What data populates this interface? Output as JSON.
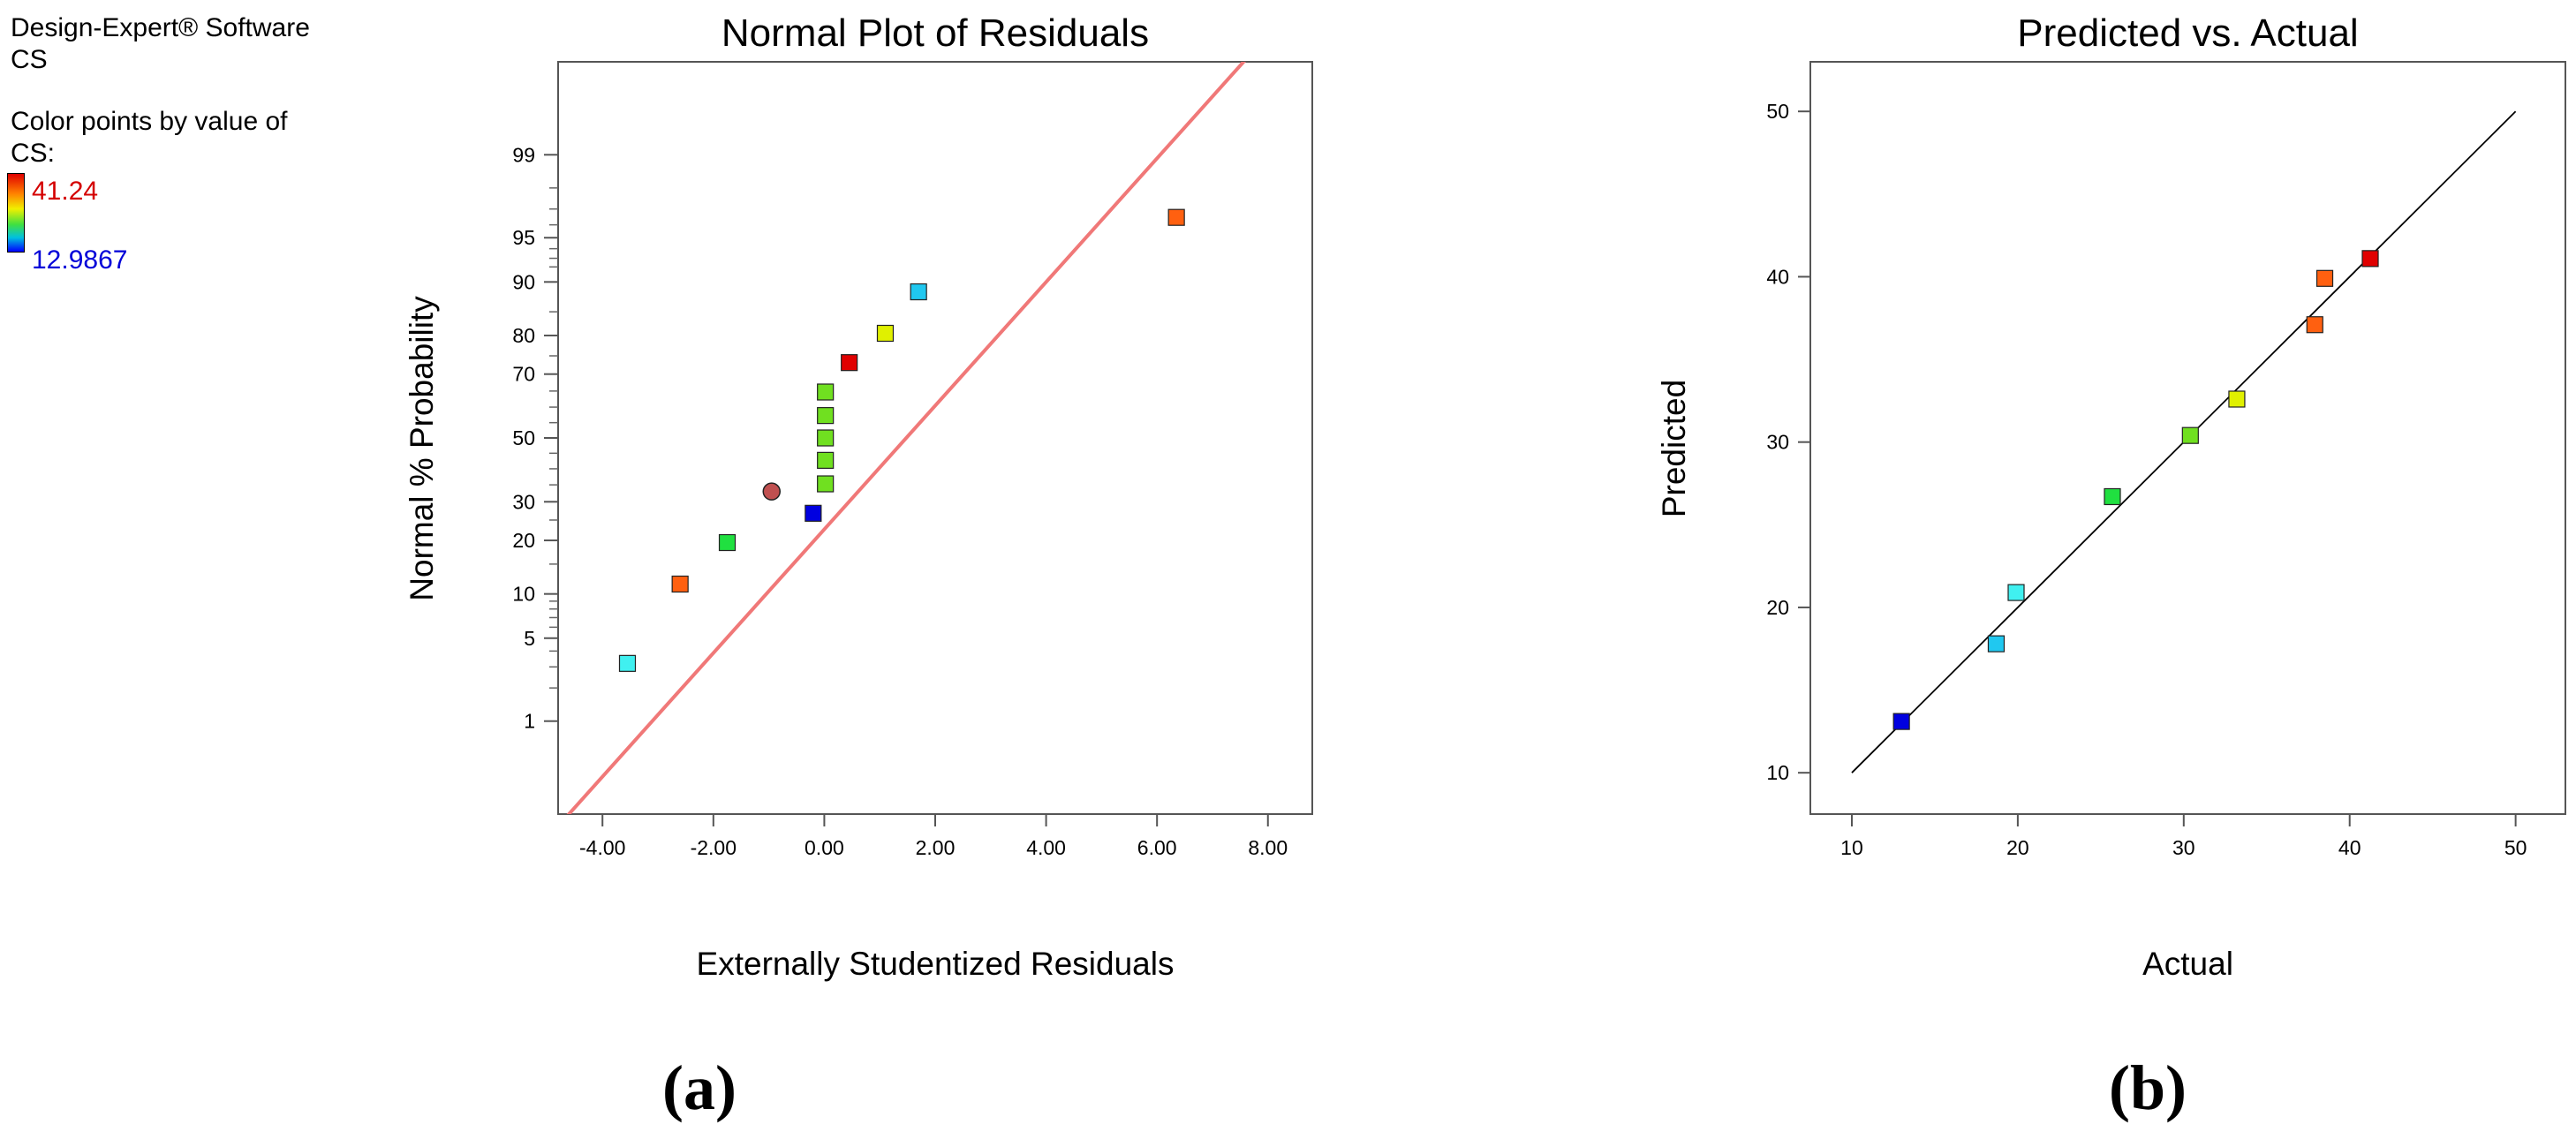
{
  "software": {
    "name": "Design-Expert® Software",
    "response": "CS",
    "color_note_line1": "Color points by value of",
    "color_note_line2": "CS:",
    "scale_high": "41.24",
    "scale_low": "12.9867"
  },
  "chart_data": [
    {
      "type": "scatter",
      "title": "Normal Plot of Residuals",
      "xlabel": "Externally Studentized Residuals",
      "ylabel": "Normal % Probability",
      "panel_label": "(a)",
      "xlim": [
        -4.8,
        8.8
      ],
      "x_ticks": [
        -4,
        -2,
        0,
        2,
        4,
        6,
        8
      ],
      "x_tick_labels": [
        "-4.00",
        "-2.00",
        "0.00",
        "2.00",
        "4.00",
        "6.00",
        "8.00"
      ],
      "y_scale": "normal-probability",
      "y_tick_labels": [
        "1",
        "5",
        "10",
        "20",
        "30",
        "50",
        "70",
        "80",
        "90",
        "95",
        "99"
      ],
      "y_ticks": [
        1,
        5,
        10,
        20,
        30,
        50,
        70,
        80,
        90,
        95,
        99
      ],
      "reference_line": {
        "color": "#f07878",
        "points": [
          [
            -5,
            0.05
          ],
          [
            8.8,
            99.99
          ]
        ]
      },
      "points": [
        {
          "x": -3.55,
          "y": 3.2,
          "color": "#40f0f0",
          "shape": "square"
        },
        {
          "x": -2.6,
          "y": 11.5,
          "color": "#ff6010",
          "shape": "square"
        },
        {
          "x": -1.75,
          "y": 19.5,
          "color": "#20e040",
          "shape": "square"
        },
        {
          "x": -0.95,
          "y": 33,
          "color": "#c05050",
          "shape": "circle"
        },
        {
          "x": -0.2,
          "y": 26.8,
          "color": "#0000e0",
          "shape": "square"
        },
        {
          "x": 0.02,
          "y": 35.3,
          "color": "#70e020",
          "shape": "square"
        },
        {
          "x": 0.02,
          "y": 42.7,
          "color": "#70e020",
          "shape": "square"
        },
        {
          "x": 0.02,
          "y": 50.0,
          "color": "#70e020",
          "shape": "square"
        },
        {
          "x": 0.02,
          "y": 57.3,
          "color": "#70e020",
          "shape": "square"
        },
        {
          "x": 0.02,
          "y": 64.7,
          "color": "#70e020",
          "shape": "square"
        },
        {
          "x": 0.45,
          "y": 73.2,
          "color": "#e00000",
          "shape": "square"
        },
        {
          "x": 1.1,
          "y": 80.5,
          "color": "#e0f000",
          "shape": "square"
        },
        {
          "x": 1.7,
          "y": 88.5,
          "color": "#20c8f0",
          "shape": "square"
        },
        {
          "x": 6.35,
          "y": 96.5,
          "color": "#ff6010",
          "shape": "square"
        }
      ]
    },
    {
      "type": "scatter",
      "title": "Predicted vs. Actual",
      "xlabel": "Actual",
      "ylabel": "Predicted",
      "panel_label": "(b)",
      "xlim": [
        7.5,
        53
      ],
      "ylim": [
        7.5,
        53
      ],
      "x_ticks": [
        10,
        20,
        30,
        40,
        50
      ],
      "y_ticks": [
        10,
        20,
        30,
        40,
        50
      ],
      "reference_line": {
        "color": "#000000",
        "points": [
          [
            10,
            10
          ],
          [
            50,
            50
          ]
        ]
      },
      "points": [
        {
          "x": 12.99,
          "y": 13.1,
          "color": "#0000e0"
        },
        {
          "x": 18.7,
          "y": 17.8,
          "color": "#20c8f0"
        },
        {
          "x": 19.9,
          "y": 20.9,
          "color": "#40f0f0"
        },
        {
          "x": 25.7,
          "y": 26.7,
          "color": "#20e040"
        },
        {
          "x": 30.4,
          "y": 30.4,
          "color": "#70e020"
        },
        {
          "x": 33.2,
          "y": 32.6,
          "color": "#e0f000"
        },
        {
          "x": 37.9,
          "y": 37.1,
          "color": "#ff6010"
        },
        {
          "x": 38.5,
          "y": 39.9,
          "color": "#ff6010"
        },
        {
          "x": 41.24,
          "y": 41.1,
          "color": "#e00000"
        }
      ]
    }
  ]
}
